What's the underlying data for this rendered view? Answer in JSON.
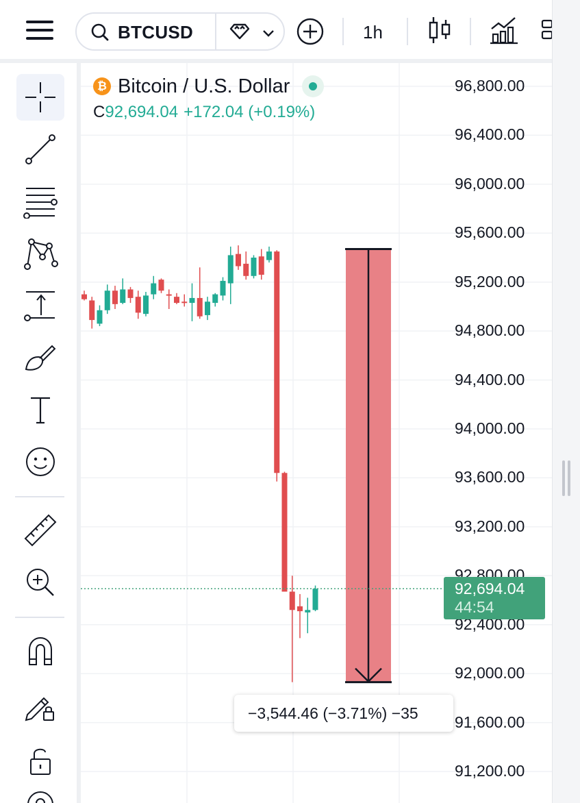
{
  "header": {
    "symbol": "BTCUSD",
    "interval": "1h",
    "icons": [
      "menu-icon",
      "search-icon",
      "diamond-icon",
      "chevron-down-icon",
      "add-icon",
      "candles-icon",
      "indicators-icon",
      "layout-icon"
    ]
  },
  "left_toolbar": {
    "tools": [
      "crosshair-icon",
      "trendline-icon",
      "fib-icon",
      "pattern-icon",
      "projection-icon",
      "brush-icon",
      "text-icon",
      "emoji-icon",
      "ruler-icon",
      "zoom-in-icon",
      "magnet-icon",
      "lock-drawing-icon",
      "unlock-icon",
      "eye-icon"
    ]
  },
  "legend": {
    "logo_glyph": "₿",
    "title": "Bitcoin / U.S. Dollar",
    "close_label": "C",
    "close_value": "92,694.04",
    "change": "+172.04 (+0.19%)"
  },
  "measure": {
    "label": "−3,544.46 (−3.71%) −35"
  },
  "price_tag": {
    "price": "92,694.04",
    "countdown": "44:54"
  },
  "price_axis": {
    "labels": [
      "96,800.00",
      "96,400.00",
      "96,000.00",
      "95,600.00",
      "95,200.00",
      "94,800.00",
      "94,400.00",
      "94,000.00",
      "93,600.00",
      "93,200.00",
      "92,800.00",
      "92,400.00",
      "92,000.00",
      "91,600.00",
      "91,200.00"
    ]
  },
  "colors": {
    "up": "#22ab94",
    "down": "#e04d4f",
    "measure_fill": "#e88186",
    "accent": "#41a27a"
  },
  "chart_data": {
    "type": "candlestick",
    "ylim": [
      91200,
      96800
    ],
    "last_price": 92694.04,
    "measure": {
      "from": 95470,
      "to": 91930
    },
    "candles": [
      {
        "o": 95100,
        "h": 95130,
        "l": 95050,
        "c": 95060
      },
      {
        "o": 95050,
        "h": 95080,
        "l": 94820,
        "c": 94890
      },
      {
        "o": 94860,
        "h": 95010,
        "l": 94840,
        "c": 94970
      },
      {
        "o": 94970,
        "h": 95180,
        "l": 94940,
        "c": 95130
      },
      {
        "o": 95130,
        "h": 95170,
        "l": 94980,
        "c": 95020
      },
      {
        "o": 95030,
        "h": 95230,
        "l": 95020,
        "c": 95140
      },
      {
        "o": 95140,
        "h": 95160,
        "l": 95030,
        "c": 95070
      },
      {
        "o": 95080,
        "h": 95130,
        "l": 94900,
        "c": 94950
      },
      {
        "o": 94940,
        "h": 95120,
        "l": 94920,
        "c": 95090
      },
      {
        "o": 95100,
        "h": 95250,
        "l": 95060,
        "c": 95190
      },
      {
        "o": 95220,
        "h": 95230,
        "l": 95110,
        "c": 95130
      },
      {
        "o": 95100,
        "h": 95140,
        "l": 94980,
        "c": 95090
      },
      {
        "o": 95080,
        "h": 95110,
        "l": 95020,
        "c": 95030
      },
      {
        "o": 95040,
        "h": 95100,
        "l": 95000,
        "c": 95030
      },
      {
        "o": 95030,
        "h": 95190,
        "l": 94880,
        "c": 95070
      },
      {
        "o": 95070,
        "h": 95320,
        "l": 94900,
        "c": 94920
      },
      {
        "o": 94930,
        "h": 95080,
        "l": 94890,
        "c": 95040
      },
      {
        "o": 95030,
        "h": 95110,
        "l": 95000,
        "c": 95100
      },
      {
        "o": 95090,
        "h": 95240,
        "l": 95050,
        "c": 95210
      },
      {
        "o": 95190,
        "h": 95490,
        "l": 95020,
        "c": 95420
      },
      {
        "o": 95430,
        "h": 95500,
        "l": 95300,
        "c": 95330
      },
      {
        "o": 95350,
        "h": 95450,
        "l": 95220,
        "c": 95250
      },
      {
        "o": 95250,
        "h": 95420,
        "l": 95230,
        "c": 95400
      },
      {
        "o": 95410,
        "h": 95470,
        "l": 95220,
        "c": 95260
      },
      {
        "o": 95380,
        "h": 95490,
        "l": 95360,
        "c": 95450
      },
      {
        "o": 95450,
        "h": 95460,
        "l": 93570,
        "c": 93640
      },
      {
        "o": 93640,
        "h": 93650,
        "l": 92670,
        "c": 92670
      },
      {
        "o": 92670,
        "h": 92800,
        "l": 91930,
        "c": 92520
      },
      {
        "o": 92550,
        "h": 92650,
        "l": 92290,
        "c": 92510
      },
      {
        "o": 92500,
        "h": 92620,
        "l": 92330,
        "c": 92520
      },
      {
        "o": 92520,
        "h": 92720,
        "l": 92510,
        "c": 92694
      }
    ]
  }
}
